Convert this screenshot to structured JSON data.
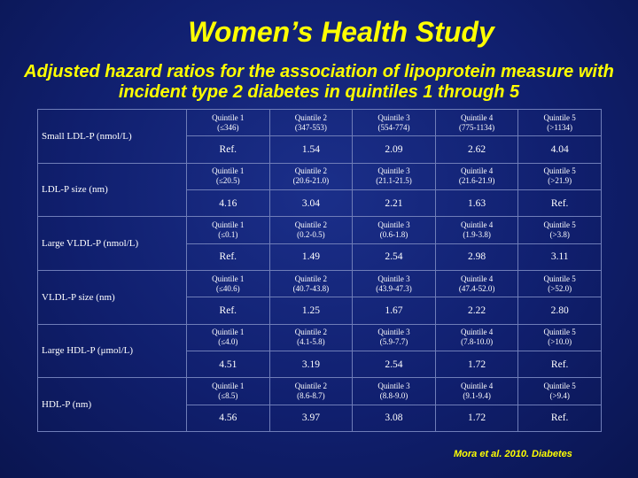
{
  "title": "Women’s Health Study",
  "subtitle": "Adjusted hazard ratios for the association of lipoprotein measure with incident type 2 diabetes in quintiles 1 through 5",
  "rows": [
    {
      "label": "Small LDL-P (nmol/L)",
      "quintiles": [
        {
          "name": "Quintile 1",
          "range": "(≤346)"
        },
        {
          "name": "Quintile 2",
          "range": "(347-553)"
        },
        {
          "name": "Quintile 3",
          "range": "(554-774)"
        },
        {
          "name": "Quintile 4",
          "range": "(775-1134)"
        },
        {
          "name": "Quintile 5",
          "range": "(>1134)"
        }
      ],
      "values": [
        "Ref.",
        "1.54",
        "2.09",
        "2.62",
        "4.04"
      ]
    },
    {
      "label": "LDL-P size (nm)",
      "quintiles": [
        {
          "name": "Quintile 1",
          "range": "(≤20.5)"
        },
        {
          "name": "Quintile 2",
          "range": "(20.6-21.0)"
        },
        {
          "name": "Quintile 3",
          "range": "(21.1-21.5)"
        },
        {
          "name": "Quintile 4",
          "range": "(21.6-21.9)"
        },
        {
          "name": "Quintile 5",
          "range": "(>21.9)"
        }
      ],
      "values": [
        "4.16",
        "3.04",
        "2.21",
        "1.63",
        "Ref."
      ]
    },
    {
      "label": "Large VLDL-P (nmol/L)",
      "quintiles": [
        {
          "name": "Quintile 1",
          "range": "(≤0.1)"
        },
        {
          "name": "Quintile 2",
          "range": "(0.2-0.5)"
        },
        {
          "name": "Quintile 3",
          "range": "(0.6-1.8)"
        },
        {
          "name": "Quintile 4",
          "range": "(1.9-3.8)"
        },
        {
          "name": "Quintile 5",
          "range": "(>3.8)"
        }
      ],
      "values": [
        "Ref.",
        "1.49",
        "2.54",
        "2.98",
        "3.11"
      ]
    },
    {
      "label": "VLDL-P size (nm)",
      "quintiles": [
        {
          "name": "Quintile 1",
          "range": "(≤40.6)"
        },
        {
          "name": "Quintile 2",
          "range": "(40.7-43.8)"
        },
        {
          "name": "Quintile 3",
          "range": "(43.9-47.3)"
        },
        {
          "name": "Quintile 4",
          "range": "(47.4-52.0)"
        },
        {
          "name": "Quintile 5",
          "range": "(>52.0)"
        }
      ],
      "values": [
        "Ref.",
        "1.25",
        "1.67",
        "2.22",
        "2.80"
      ]
    },
    {
      "label": "Large HDL-P (μmol/L)",
      "quintiles": [
        {
          "name": "Quintile 1",
          "range": "(≤4.0)"
        },
        {
          "name": "Quintile 2",
          "range": "(4.1-5.8)"
        },
        {
          "name": "Quintile 3",
          "range": "(5.9-7.7)"
        },
        {
          "name": "Quintile 4",
          "range": "(7.8-10.0)"
        },
        {
          "name": "Quintile 5",
          "range": "(>10.0)"
        }
      ],
      "values": [
        "4.51",
        "3.19",
        "2.54",
        "1.72",
        "Ref."
      ]
    },
    {
      "label": "HDL-P (nm)",
      "quintiles": [
        {
          "name": "Quintile 1",
          "range": "(≤8.5)"
        },
        {
          "name": "Quintile 2",
          "range": "(8.6-8.7)"
        },
        {
          "name": "Quintile 3",
          "range": "(8.8-9.0)"
        },
        {
          "name": "Quintile 4",
          "range": "(9.1-9.4)"
        },
        {
          "name": "Quintile 5",
          "range": "(>9.4)"
        }
      ],
      "values": [
        "4.56",
        "3.97",
        "3.08",
        "1.72",
        "Ref."
      ]
    }
  ],
  "footer": "Mora et al. 2010. Diabetes",
  "colors": {
    "background": "#101f6e",
    "title": "#ffff00",
    "text": "#ffffff",
    "grid": "#6f7db8"
  }
}
